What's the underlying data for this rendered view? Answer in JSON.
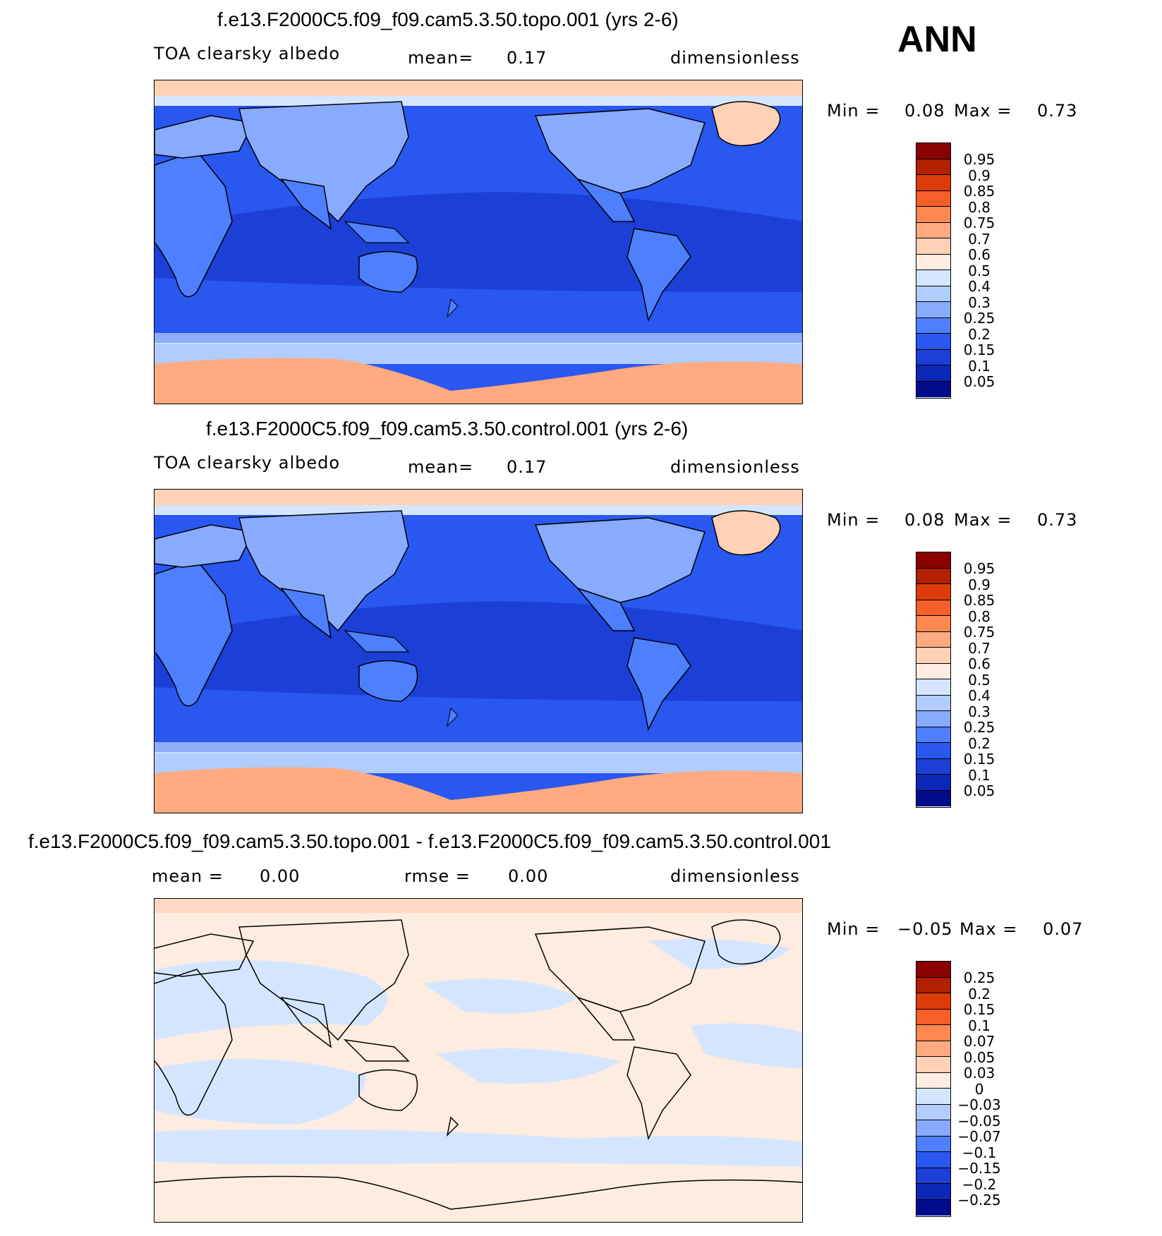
{
  "season": "ANN",
  "panels": [
    {
      "id": "topo",
      "title": "f.e13.F2000C5.f09_f09.cam5.3.50.topo.001 (yrs 2-6)",
      "variable": "TOA clearsky albedo",
      "stat1_label": "mean=",
      "stat1_value": "0.17",
      "stat2_label": "",
      "stat2_value": "",
      "units": "dimensionless",
      "min_label": "Min =",
      "min_value": "0.08",
      "max_label": "Max =",
      "max_value": "0.73",
      "colorbar": {
        "labels": [
          "0.95",
          "0.9",
          "0.85",
          "0.8",
          "0.75",
          "0.7",
          "0.6",
          "0.5",
          "0.4",
          "0.3",
          "0.25",
          "0.2",
          "0.15",
          "0.1",
          "0.05"
        ],
        "colors": [
          "#8b0000",
          "#b22000",
          "#dd3c0a",
          "#f65e2a",
          "#ff8850",
          "#ffaa80",
          "#ffd1b6",
          "#ffece0",
          "#d4e6ff",
          "#b1ccff",
          "#88aaff",
          "#4d7fff",
          "#2a57f0",
          "#1c3fd8",
          "#0d27b8",
          "#000c8c"
        ]
      }
    },
    {
      "id": "control",
      "title": "f.e13.F2000C5.f09_f09.cam5.3.50.control.001 (yrs 2-6)",
      "variable": "TOA clearsky albedo",
      "stat1_label": "mean=",
      "stat1_value": "0.17",
      "stat2_label": "",
      "stat2_value": "",
      "units": "dimensionless",
      "min_label": "Min =",
      "min_value": "0.08",
      "max_label": "Max =",
      "max_value": "0.73",
      "colorbar": {
        "labels": [
          "0.95",
          "0.9",
          "0.85",
          "0.8",
          "0.75",
          "0.7",
          "0.6",
          "0.5",
          "0.4",
          "0.3",
          "0.25",
          "0.2",
          "0.15",
          "0.1",
          "0.05"
        ],
        "colors": [
          "#8b0000",
          "#b22000",
          "#dd3c0a",
          "#f65e2a",
          "#ff8850",
          "#ffaa80",
          "#ffd1b6",
          "#ffece0",
          "#d4e6ff",
          "#b1ccff",
          "#88aaff",
          "#4d7fff",
          "#2a57f0",
          "#1c3fd8",
          "#0d27b8",
          "#000c8c"
        ]
      }
    },
    {
      "id": "diff",
      "title": "f.e13.F2000C5.f09_f09.cam5.3.50.topo.001 - f.e13.F2000C5.f09_f09.cam5.3.50.control.001",
      "variable": "",
      "stat1_label": "mean =",
      "stat1_value": "0.00",
      "stat2_label": "rmse =",
      "stat2_value": "0.00",
      "units": "dimensionless",
      "min_label": "Min =",
      "min_value": "−0.05",
      "max_label": "Max =",
      "max_value": "0.07",
      "colorbar": {
        "labels": [
          "0.25",
          "0.2",
          "0.15",
          "0.1",
          "0.07",
          "0.05",
          "0.03",
          "0",
          "−0.03",
          "−0.05",
          "−0.07",
          "−0.1",
          "−0.15",
          "−0.2",
          "−0.25"
        ],
        "colors": [
          "#8b0000",
          "#b22000",
          "#dd3c0a",
          "#f65e2a",
          "#ff8850",
          "#ffaa80",
          "#ffd1b6",
          "#ffece0",
          "#d4e6ff",
          "#b1ccff",
          "#88aaff",
          "#4d7fff",
          "#2a57f0",
          "#1c3fd8",
          "#0d27b8",
          "#000c8c"
        ]
      }
    }
  ],
  "map_colors": {
    "deep_ocean": "#1c3fd8",
    "ocean": "#2a57f0",
    "land": "#4d7fff",
    "land_light": "#88aaff",
    "sea_ice": "#b1ccff",
    "ice_edge": "#d4e6ff",
    "polar": "#ffd1b6",
    "antarctica": "#ffaa80",
    "diff_pos": "#ffece0",
    "diff_neg": "#d4e6ff"
  }
}
